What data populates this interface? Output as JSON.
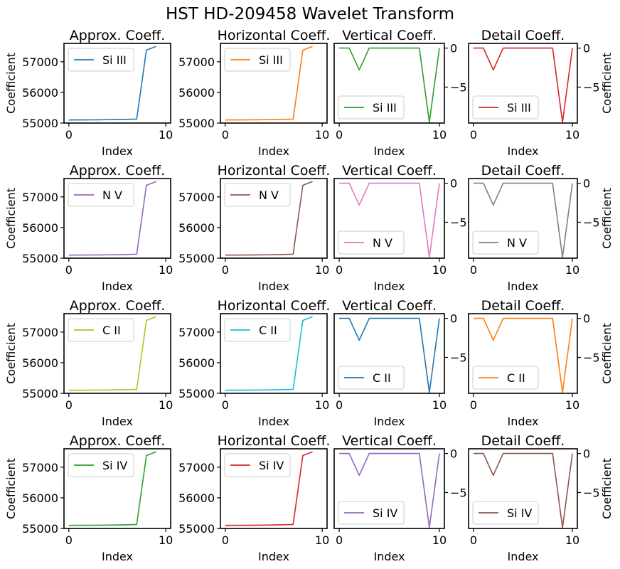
{
  "figure": {
    "title": "HST HD-209458 Wavelet Transform"
  },
  "chart_data": [
    {
      "type": "line",
      "title": "Approx. Coeff.",
      "series": [
        {
          "name": "Si III",
          "color": "#1f77b4",
          "values": [
            55100,
            55102,
            55104,
            55106,
            55110,
            55114,
            55120,
            55130,
            57380,
            57500
          ]
        }
      ],
      "x": [
        0,
        1,
        2,
        3,
        4,
        5,
        6,
        7,
        8,
        9
      ],
      "xlabel": "Index",
      "ylabel": "Coefficient",
      "xlim": [
        -0.5,
        10.5
      ],
      "ylim": [
        55000,
        57600
      ],
      "xticks": [
        0,
        10
      ],
      "yticks": [
        55000,
        56000,
        57000
      ],
      "ytick_labels": [
        "55000",
        "56000",
        "57000"
      ],
      "yaxis_side": "left",
      "legend_position": "upper-left"
    },
    {
      "type": "line",
      "title": "Horizontal Coeff.",
      "series": [
        {
          "name": "Si III",
          "color": "#ff7f0e",
          "values": [
            55100,
            55102,
            55104,
            55106,
            55110,
            55114,
            55120,
            55130,
            57380,
            57500
          ]
        }
      ],
      "x": [
        0,
        1,
        2,
        3,
        4,
        5,
        6,
        7,
        8,
        9
      ],
      "xlabel": "Index",
      "ylabel": "",
      "xlim": [
        -0.5,
        10.5
      ],
      "ylim": [
        55000,
        57600
      ],
      "xticks": [
        0,
        10
      ],
      "yticks": [
        55000,
        56000,
        57000
      ],
      "ytick_labels": [
        "55000",
        "56000",
        "57000"
      ],
      "yaxis_side": "left",
      "legend_position": "upper-left"
    },
    {
      "type": "line",
      "title": "Vertical Coeff.",
      "series": [
        {
          "name": "Si III",
          "color": "#2ca02c",
          "values": [
            0,
            0,
            -2.8,
            0,
            0,
            0,
            0,
            0,
            0,
            -9.5,
            0
          ]
        }
      ],
      "x": [
        0,
        1,
        2,
        3,
        4,
        5,
        6,
        7,
        8,
        9,
        10
      ],
      "xlabel": "Index",
      "ylabel": "",
      "xlim": [
        -0.5,
        10.5
      ],
      "ylim": [
        -9.6,
        0.6
      ],
      "xticks": [
        0,
        10
      ],
      "yticks": [
        0,
        -5
      ],
      "ytick_labels": [
        "0",
        "−5"
      ],
      "yaxis_side": "right",
      "legend_position": "lower-left"
    },
    {
      "type": "line",
      "title": "Detail Coeff.",
      "series": [
        {
          "name": "Si III",
          "color": "#d62728",
          "values": [
            0,
            0,
            -2.8,
            0,
            0,
            0,
            0,
            0,
            0,
            -9.5,
            0
          ]
        }
      ],
      "x": [
        0,
        1,
        2,
        3,
        4,
        5,
        6,
        7,
        8,
        9,
        10
      ],
      "xlabel": "Index",
      "ylabel": "Coefficient",
      "xlim": [
        -0.5,
        10.5
      ],
      "ylim": [
        -9.6,
        0.6
      ],
      "xticks": [
        0,
        10
      ],
      "yticks": [
        0,
        -5
      ],
      "ytick_labels": [
        "0",
        "−5"
      ],
      "yaxis_side": "right",
      "legend_position": "lower-left"
    },
    {
      "type": "line",
      "title": "Approx. Coeff.",
      "series": [
        {
          "name": "N V",
          "color": "#9467bd",
          "values": [
            55100,
            55102,
            55104,
            55106,
            55110,
            55114,
            55120,
            55130,
            57380,
            57500
          ]
        }
      ],
      "x": [
        0,
        1,
        2,
        3,
        4,
        5,
        6,
        7,
        8,
        9
      ],
      "xlabel": "Index",
      "ylabel": "Coefficient",
      "xlim": [
        -0.5,
        10.5
      ],
      "ylim": [
        55000,
        57600
      ],
      "xticks": [
        0,
        10
      ],
      "yticks": [
        55000,
        56000,
        57000
      ],
      "ytick_labels": [
        "55000",
        "56000",
        "57000"
      ],
      "yaxis_side": "left",
      "legend_position": "upper-left"
    },
    {
      "type": "line",
      "title": "Horizontal Coeff.",
      "series": [
        {
          "name": "N V",
          "color": "#8c564b",
          "values": [
            55100,
            55102,
            55104,
            55106,
            55110,
            55114,
            55120,
            55130,
            57380,
            57500
          ]
        }
      ],
      "x": [
        0,
        1,
        2,
        3,
        4,
        5,
        6,
        7,
        8,
        9
      ],
      "xlabel": "Index",
      "ylabel": "",
      "xlim": [
        -0.5,
        10.5
      ],
      "ylim": [
        55000,
        57600
      ],
      "xticks": [
        0,
        10
      ],
      "yticks": [
        55000,
        56000,
        57000
      ],
      "ytick_labels": [
        "55000",
        "56000",
        "57000"
      ],
      "yaxis_side": "left",
      "legend_position": "upper-left"
    },
    {
      "type": "line",
      "title": "Vertical Coeff.",
      "series": [
        {
          "name": "N V",
          "color": "#e377c2",
          "values": [
            0,
            0,
            -2.8,
            0,
            0,
            0,
            0,
            0,
            0,
            -9.5,
            0
          ]
        }
      ],
      "x": [
        0,
        1,
        2,
        3,
        4,
        5,
        6,
        7,
        8,
        9,
        10
      ],
      "xlabel": "Index",
      "ylabel": "",
      "xlim": [
        -0.5,
        10.5
      ],
      "ylim": [
        -9.6,
        0.6
      ],
      "xticks": [
        0,
        10
      ],
      "yticks": [
        0,
        -5
      ],
      "ytick_labels": [
        "0",
        "−5"
      ],
      "yaxis_side": "right",
      "legend_position": "lower-left"
    },
    {
      "type": "line",
      "title": "Detail Coeff.",
      "series": [
        {
          "name": "N V",
          "color": "#7f7f7f",
          "values": [
            0,
            0,
            -2.8,
            0,
            0,
            0,
            0,
            0,
            0,
            -9.5,
            0
          ]
        }
      ],
      "x": [
        0,
        1,
        2,
        3,
        4,
        5,
        6,
        7,
        8,
        9,
        10
      ],
      "xlabel": "Index",
      "ylabel": "Coefficient",
      "xlim": [
        -0.5,
        10.5
      ],
      "ylim": [
        -9.6,
        0.6
      ],
      "xticks": [
        0,
        10
      ],
      "yticks": [
        0,
        -5
      ],
      "ytick_labels": [
        "0",
        "−5"
      ],
      "yaxis_side": "right",
      "legend_position": "lower-left"
    },
    {
      "type": "line",
      "title": "Approx. Coeff.",
      "series": [
        {
          "name": "C II",
          "color": "#bcbd22",
          "values": [
            55100,
            55102,
            55104,
            55106,
            55110,
            55114,
            55120,
            55130,
            57380,
            57500
          ]
        }
      ],
      "x": [
        0,
        1,
        2,
        3,
        4,
        5,
        6,
        7,
        8,
        9
      ],
      "xlabel": "Index",
      "ylabel": "Coefficient",
      "xlim": [
        -0.5,
        10.5
      ],
      "ylim": [
        55000,
        57600
      ],
      "xticks": [
        0,
        10
      ],
      "yticks": [
        55000,
        56000,
        57000
      ],
      "ytick_labels": [
        "55000",
        "56000",
        "57000"
      ],
      "yaxis_side": "left",
      "legend_position": "upper-left"
    },
    {
      "type": "line",
      "title": "Horizontal Coeff.",
      "series": [
        {
          "name": "C II",
          "color": "#17becf",
          "values": [
            55100,
            55102,
            55104,
            55106,
            55110,
            55114,
            55120,
            55130,
            57380,
            57500
          ]
        }
      ],
      "x": [
        0,
        1,
        2,
        3,
        4,
        5,
        6,
        7,
        8,
        9
      ],
      "xlabel": "Index",
      "ylabel": "",
      "xlim": [
        -0.5,
        10.5
      ],
      "ylim": [
        55000,
        57600
      ],
      "xticks": [
        0,
        10
      ],
      "yticks": [
        55000,
        56000,
        57000
      ],
      "ytick_labels": [
        "55000",
        "56000",
        "57000"
      ],
      "yaxis_side": "left",
      "legend_position": "upper-left"
    },
    {
      "type": "line",
      "title": "Vertical Coeff.",
      "series": [
        {
          "name": "C II",
          "color": "#1f77b4",
          "values": [
            0,
            0,
            -2.8,
            0,
            0,
            0,
            0,
            0,
            0,
            -9.5,
            0
          ]
        }
      ],
      "x": [
        0,
        1,
        2,
        3,
        4,
        5,
        6,
        7,
        8,
        9,
        10
      ],
      "xlabel": "Index",
      "ylabel": "",
      "xlim": [
        -0.5,
        10.5
      ],
      "ylim": [
        -9.6,
        0.6
      ],
      "xticks": [
        0,
        10
      ],
      "yticks": [
        0,
        -5
      ],
      "ytick_labels": [
        "0",
        "−5"
      ],
      "yaxis_side": "right",
      "legend_position": "lower-left"
    },
    {
      "type": "line",
      "title": "Detail Coeff.",
      "series": [
        {
          "name": "C II",
          "color": "#ff7f0e",
          "values": [
            0,
            0,
            -2.8,
            0,
            0,
            0,
            0,
            0,
            0,
            -9.5,
            0
          ]
        }
      ],
      "x": [
        0,
        1,
        2,
        3,
        4,
        5,
        6,
        7,
        8,
        9,
        10
      ],
      "xlabel": "Index",
      "ylabel": "Coefficient",
      "xlim": [
        -0.5,
        10.5
      ],
      "ylim": [
        -9.6,
        0.6
      ],
      "xticks": [
        0,
        10
      ],
      "yticks": [
        0,
        -5
      ],
      "ytick_labels": [
        "0",
        "−5"
      ],
      "yaxis_side": "right",
      "legend_position": "lower-left"
    },
    {
      "type": "line",
      "title": "Approx. Coeff.",
      "series": [
        {
          "name": "Si IV",
          "color": "#2ca02c",
          "values": [
            55100,
            55102,
            55104,
            55106,
            55110,
            55114,
            55120,
            55130,
            57380,
            57500
          ]
        }
      ],
      "x": [
        0,
        1,
        2,
        3,
        4,
        5,
        6,
        7,
        8,
        9
      ],
      "xlabel": "Index",
      "ylabel": "Coefficient",
      "xlim": [
        -0.5,
        10.5
      ],
      "ylim": [
        55000,
        57600
      ],
      "xticks": [
        0,
        10
      ],
      "yticks": [
        55000,
        56000,
        57000
      ],
      "ytick_labels": [
        "55000",
        "56000",
        "57000"
      ],
      "yaxis_side": "left",
      "legend_position": "upper-left"
    },
    {
      "type": "line",
      "title": "Horizontal Coeff.",
      "series": [
        {
          "name": "Si IV",
          "color": "#d62728",
          "values": [
            55100,
            55102,
            55104,
            55106,
            55110,
            55114,
            55120,
            55130,
            57380,
            57500
          ]
        }
      ],
      "x": [
        0,
        1,
        2,
        3,
        4,
        5,
        6,
        7,
        8,
        9
      ],
      "xlabel": "Index",
      "ylabel": "",
      "xlim": [
        -0.5,
        10.5
      ],
      "ylim": [
        55000,
        57600
      ],
      "xticks": [
        0,
        10
      ],
      "yticks": [
        55000,
        56000,
        57000
      ],
      "ytick_labels": [
        "55000",
        "56000",
        "57000"
      ],
      "yaxis_side": "left",
      "legend_position": "upper-left"
    },
    {
      "type": "line",
      "title": "Vertical Coeff.",
      "series": [
        {
          "name": "Si IV",
          "color": "#9467bd",
          "values": [
            0,
            0,
            -2.8,
            0,
            0,
            0,
            0,
            0,
            0,
            -9.5,
            0
          ]
        }
      ],
      "x": [
        0,
        1,
        2,
        3,
        4,
        5,
        6,
        7,
        8,
        9,
        10
      ],
      "xlabel": "Index",
      "ylabel": "",
      "xlim": [
        -0.5,
        10.5
      ],
      "ylim": [
        -9.6,
        0.6
      ],
      "xticks": [
        0,
        10
      ],
      "yticks": [
        0,
        -5
      ],
      "ytick_labels": [
        "0",
        "−5"
      ],
      "yaxis_side": "right",
      "legend_position": "lower-left"
    },
    {
      "type": "line",
      "title": "Detail Coeff.",
      "series": [
        {
          "name": "Si IV",
          "color": "#8c564b",
          "values": [
            0,
            0,
            -2.8,
            0,
            0,
            0,
            0,
            0,
            0,
            -9.5,
            0
          ]
        }
      ],
      "x": [
        0,
        1,
        2,
        3,
        4,
        5,
        6,
        7,
        8,
        9,
        10
      ],
      "xlabel": "Index",
      "ylabel": "Coefficient",
      "xlim": [
        -0.5,
        10.5
      ],
      "ylim": [
        -9.6,
        0.6
      ],
      "xticks": [
        0,
        10
      ],
      "yticks": [
        0,
        -5
      ],
      "ytick_labels": [
        "0",
        "−5"
      ],
      "yaxis_side": "right",
      "legend_position": "lower-left"
    }
  ]
}
